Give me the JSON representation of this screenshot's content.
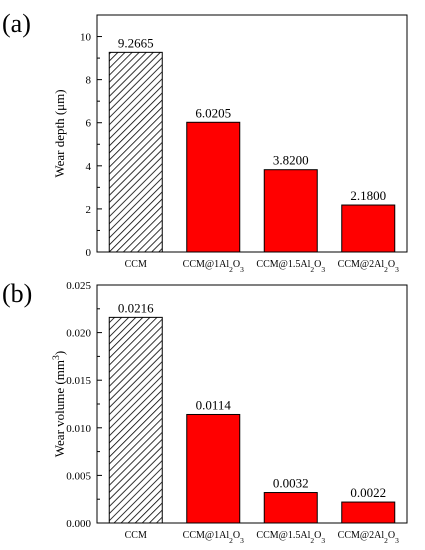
{
  "chart_data": [
    {
      "panel_label": "(a)",
      "type": "bar",
      "categories": [
        "CCM",
        "CCM@1Al₂O₃",
        "CCM@1.5Al₂O₃",
        "CCM@2Al₂O₃"
      ],
      "values": [
        9.2665,
        6.0205,
        3.82,
        2.18
      ],
      "value_labels": [
        "9.2665",
        "6.0205",
        "3.8200",
        "2.1800"
      ],
      "bar_styles": [
        "hatched",
        "solid",
        "solid",
        "solid"
      ],
      "colors": {
        "hatched": "#ffffff",
        "solid": "#ff0000",
        "hatch_line": "#000000"
      },
      "ylabel": "Wear depth (μm)",
      "ylim": [
        0,
        11
      ],
      "yticks": [
        0,
        2,
        4,
        6,
        8,
        10
      ],
      "ytick_labels": [
        "0",
        "2",
        "4",
        "6",
        "8",
        "10"
      ],
      "grid": false,
      "legend": "none"
    },
    {
      "panel_label": "(b)",
      "type": "bar",
      "categories": [
        "CCM",
        "CCM@1Al₂O₃",
        "CCM@1.5Al₂O₃",
        "CCM@2Al₂O₃"
      ],
      "values": [
        0.0216,
        0.0114,
        0.0032,
        0.0022
      ],
      "value_labels": [
        "0.0216",
        "0.0114",
        "0.0032",
        "0.0022"
      ],
      "bar_styles": [
        "hatched",
        "solid",
        "solid",
        "solid"
      ],
      "colors": {
        "hatched": "#ffffff",
        "solid": "#ff0000",
        "hatch_line": "#000000"
      },
      "ylabel": "Wear volume (mm³)",
      "ylim": [
        0,
        0.025
      ],
      "yticks": [
        0,
        0.005,
        0.01,
        0.015,
        0.02,
        0.025
      ],
      "ytick_labels": [
        "0.000",
        "0.005",
        "0.010",
        "0.015",
        "0.020",
        "0.025"
      ],
      "grid": false,
      "legend": "none"
    }
  ]
}
